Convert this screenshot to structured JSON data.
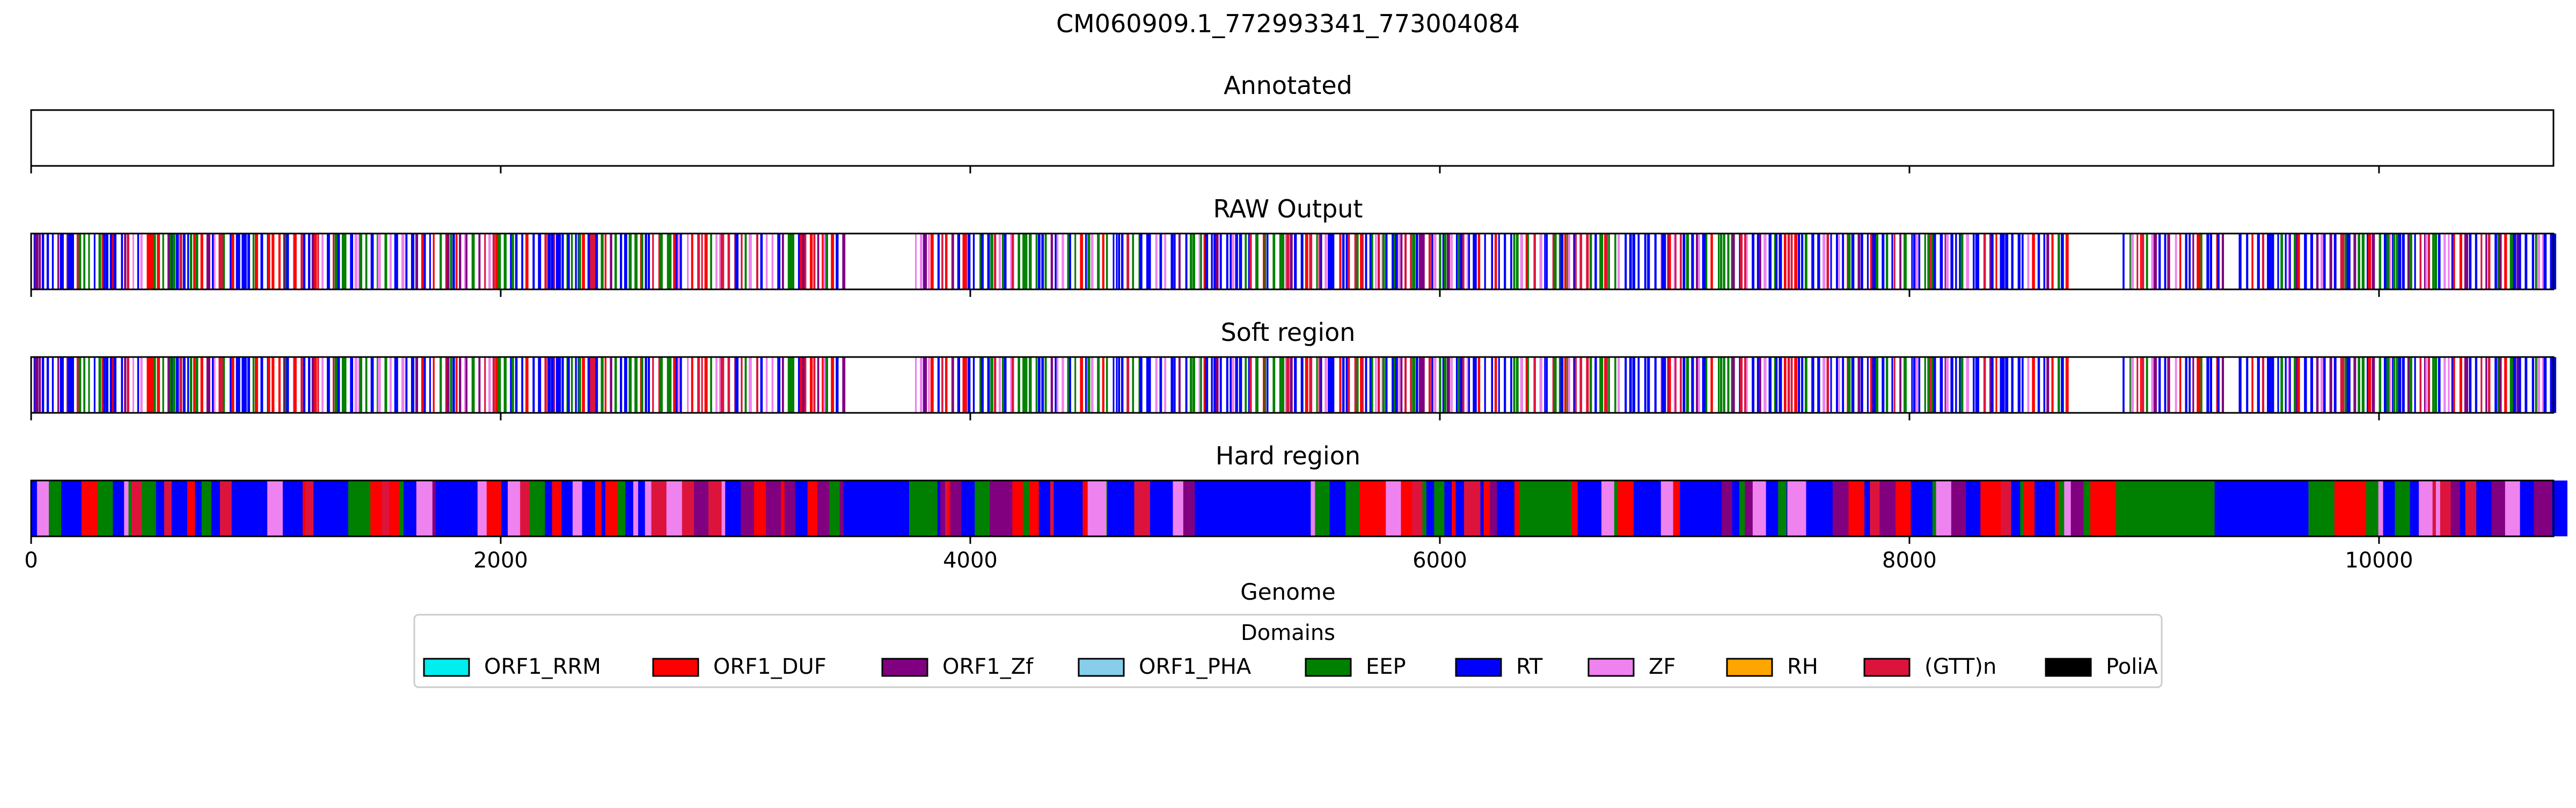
{
  "chart_data": {
    "type": "track",
    "title": "CM060909.1_772993341_773004084",
    "xlabel": "Genome",
    "xlim": [
      0,
      10743
    ],
    "xticks": [
      0,
      2000,
      4000,
      6000,
      8000,
      10000
    ],
    "grid": false,
    "legend": {
      "title": "Domains",
      "placement": "bottom-center",
      "entries": [
        {
          "name": "ORF1_RRM",
          "color": "#00eeee"
        },
        {
          "name": "ORF1_DUF",
          "color": "#ff0000"
        },
        {
          "name": "ORF1_Zf",
          "color": "#800080"
        },
        {
          "name": "ORF1_PHA",
          "color": "#87ceeb"
        },
        {
          "name": "EEP",
          "color": "#008000"
        },
        {
          "name": "RT",
          "color": "#0000ff"
        },
        {
          "name": "ZF",
          "color": "#ee82ee"
        },
        {
          "name": "RH",
          "color": "#ffa500"
        },
        {
          "name": "(GTT)n",
          "color": "#dc143c"
        },
        {
          "name": "PoliA",
          "color": "#000000"
        }
      ]
    },
    "tracks": [
      {
        "title": "Annotated",
        "style": "empty",
        "segments": []
      },
      {
        "title": "RAW Output",
        "style": "lines",
        "seed": 11,
        "density": 1.0
      },
      {
        "title": "Soft region",
        "style": "lines",
        "seed": 11,
        "density": 1.0
      },
      {
        "title": "Hard region",
        "style": "filled",
        "seed": 29,
        "segments": [
          {
            "start": 3460,
            "end": 3740,
            "domain": "RT"
          },
          {
            "start": 3740,
            "end": 3860,
            "domain": "EEP"
          },
          {
            "start": 4500,
            "end": 4580,
            "domain": "ZF"
          },
          {
            "start": 4990,
            "end": 5450,
            "domain": "RT"
          },
          {
            "start": 6400,
            "end": 6560,
            "domain": "EEP"
          },
          {
            "start": 7480,
            "end": 7560,
            "domain": "ZF"
          },
          {
            "start": 8560,
            "end": 8620,
            "domain": "RT"
          },
          {
            "start": 8770,
            "end": 8880,
            "domain": "ORF1_DUF"
          },
          {
            "start": 8880,
            "end": 9300,
            "domain": "EEP"
          },
          {
            "start": 9300,
            "end": 9700,
            "domain": "RT"
          },
          {
            "start": 9700,
            "end": 9810,
            "domain": "EEP"
          },
          {
            "start": 9810,
            "end": 9930,
            "domain": "ORF1_DUF"
          }
        ]
      }
    ]
  }
}
